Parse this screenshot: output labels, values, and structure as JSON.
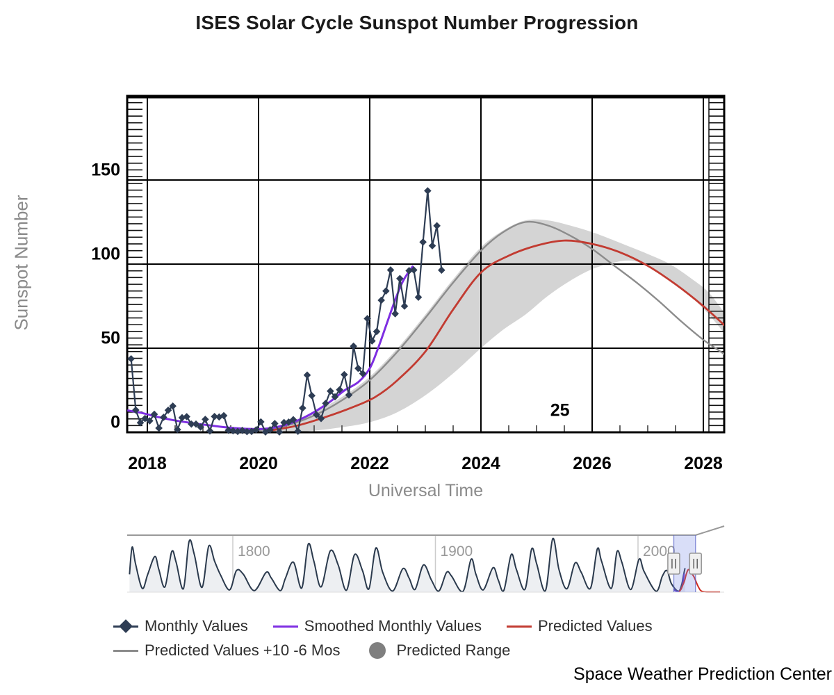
{
  "title": "ISES Solar Cycle Sunspot Number Progression",
  "footer": "Space Weather Prediction Center",
  "axes": {
    "x_title": "Universal Time",
    "y_title": "Sunspot Number",
    "x_ticks": [
      2018,
      2020,
      2022,
      2024,
      2026,
      2028
    ],
    "y_ticks": [
      0,
      50,
      100,
      150
    ]
  },
  "colors": {
    "monthly": "#2e3d54",
    "smoothed": "#7e2ee2",
    "predicted": "#c23b31",
    "predicted_shifted": "#8c8c8c",
    "predicted_range": "#d4d4d4",
    "grid": "#000000",
    "axis_title": "#8a8a8a",
    "tick_label": "#000000",
    "nav_line": "#2b3a4d",
    "nav_fill": "#edeff2",
    "nav_label": "#999999",
    "nav_grid": "#cccccc",
    "selection_fill": "rgba(120,135,230,0.28)",
    "selection_edge": "rgba(90,100,200,0.65)",
    "handle_fill": "#f0f0f0",
    "handle_stroke": "#999999"
  },
  "legend": {
    "rows": [
      {
        "items": [
          {
            "label": "Monthly Values",
            "marker": "diamond-line",
            "color": "#2e3d54"
          },
          {
            "label": "Smoothed Monthly Values",
            "marker": "line",
            "color": "#7e2ee2"
          },
          {
            "label": "Predicted Values",
            "marker": "line",
            "color": "#c23b31"
          }
        ]
      },
      {
        "items": [
          {
            "label": "Predicted Values +10 -6 Mos",
            "marker": "line",
            "color": "#8c8c8c"
          },
          {
            "label": "Predicted Range",
            "marker": "circle",
            "color": "#7f7f7f"
          }
        ]
      }
    ]
  },
  "chart_data": {
    "type": "line",
    "title": "ISES Solar Cycle Sunspot Number Progression",
    "xlabel": "Universal Time",
    "ylabel": "Sunspot Number",
    "xlim": [
      2017.64,
      2028.38
    ],
    "ylim": [
      0,
      200
    ],
    "x_ticks": [
      2018,
      2020,
      2022,
      2024,
      2026,
      2028
    ],
    "y_ticks": [
      0,
      50,
      100,
      150
    ],
    "annotation": {
      "text": "25",
      "x": 2025.42,
      "y": 13
    },
    "series": [
      {
        "name": "Monthly Values",
        "type": "line-diamond",
        "color": "#2e3d54",
        "points": [
          [
            2017.708,
            43.7
          ],
          [
            2017.792,
            13.2
          ],
          [
            2017.875,
            5.7
          ],
          [
            2017.958,
            8.2
          ],
          [
            2018.042,
            6.8
          ],
          [
            2018.125,
            10.7
          ],
          [
            2018.208,
            2.5
          ],
          [
            2018.292,
            8.9
          ],
          [
            2018.375,
            13.1
          ],
          [
            2018.458,
            15.6
          ],
          [
            2018.542,
            1.6
          ],
          [
            2018.625,
            8.7
          ],
          [
            2018.708,
            9.3
          ],
          [
            2018.792,
            4.9
          ],
          [
            2018.875,
            4.9
          ],
          [
            2018.958,
            3.1
          ],
          [
            2019.042,
            7.7
          ],
          [
            2019.125,
            0.8
          ],
          [
            2019.208,
            9.4
          ],
          [
            2019.292,
            9.1
          ],
          [
            2019.375,
            9.9
          ],
          [
            2019.458,
            1.2
          ],
          [
            2019.542,
            0.9
          ],
          [
            2019.625,
            0.5
          ],
          [
            2019.708,
            1.1
          ],
          [
            2019.792,
            0.4
          ],
          [
            2019.875,
            0.5
          ],
          [
            2019.958,
            1.5
          ],
          [
            2020.042,
            6.2
          ],
          [
            2020.125,
            0.2
          ],
          [
            2020.208,
            1.5
          ],
          [
            2020.292,
            5.2
          ],
          [
            2020.375,
            0.2
          ],
          [
            2020.458,
            5.8
          ],
          [
            2020.542,
            6.1
          ],
          [
            2020.625,
            7.5
          ],
          [
            2020.708,
            0.6
          ],
          [
            2020.792,
            14.4
          ],
          [
            2020.875,
            34.0
          ],
          [
            2020.958,
            21.8
          ],
          [
            2021.042,
            10.4
          ],
          [
            2021.125,
            8.2
          ],
          [
            2021.208,
            17.2
          ],
          [
            2021.292,
            24.5
          ],
          [
            2021.375,
            21.1
          ],
          [
            2021.458,
            25.3
          ],
          [
            2021.542,
            34.3
          ],
          [
            2021.625,
            22.2
          ],
          [
            2021.708,
            51.2
          ],
          [
            2021.792,
            38.0
          ],
          [
            2021.875,
            34.9
          ],
          [
            2021.958,
            67.6
          ],
          [
            2022.042,
            54.3
          ],
          [
            2022.125,
            59.9
          ],
          [
            2022.208,
            78.5
          ],
          [
            2022.292,
            84.0
          ],
          [
            2022.375,
            96.5
          ],
          [
            2022.458,
            70.5
          ],
          [
            2022.542,
            91.4
          ],
          [
            2022.625,
            75.0
          ],
          [
            2022.708,
            96.1
          ],
          [
            2022.792,
            96.5
          ],
          [
            2022.875,
            80.3
          ],
          [
            2022.958,
            113.1
          ],
          [
            2023.042,
            143.6
          ],
          [
            2023.125,
            110.9
          ],
          [
            2023.208,
            122.8
          ],
          [
            2023.292,
            96.4
          ]
        ]
      },
      {
        "name": "Smoothed Monthly Values",
        "type": "line",
        "color": "#7e2ee2",
        "points": [
          [
            2017.64,
            13
          ],
          [
            2017.9,
            11.5
          ],
          [
            2018.2,
            9
          ],
          [
            2018.5,
            7
          ],
          [
            2018.8,
            5.5
          ],
          [
            2019.1,
            4.2
          ],
          [
            2019.4,
            3
          ],
          [
            2019.7,
            2.2
          ],
          [
            2019.95,
            1.9
          ],
          [
            2020.2,
            2.4
          ],
          [
            2020.5,
            4.5
          ],
          [
            2020.8,
            8.5
          ],
          [
            2021.05,
            13
          ],
          [
            2021.3,
            18.5
          ],
          [
            2021.55,
            25
          ],
          [
            2021.8,
            30
          ],
          [
            2022.0,
            38
          ],
          [
            2022.15,
            50
          ],
          [
            2022.3,
            64
          ],
          [
            2022.45,
            78
          ],
          [
            2022.6,
            90
          ],
          [
            2022.78,
            99
          ]
        ]
      },
      {
        "name": "Predicted Values",
        "type": "line",
        "color": "#c23b31",
        "points": [
          [
            2020.2,
            1
          ],
          [
            2020.7,
            4
          ],
          [
            2021.2,
            9
          ],
          [
            2021.7,
            15
          ],
          [
            2022.1,
            21
          ],
          [
            2022.5,
            31
          ],
          [
            2023,
            48
          ],
          [
            2023.5,
            73
          ],
          [
            2024,
            95
          ],
          [
            2024.5,
            105
          ],
          [
            2025,
            111
          ],
          [
            2025.5,
            114
          ],
          [
            2026,
            112
          ],
          [
            2026.5,
            107
          ],
          [
            2027,
            99
          ],
          [
            2027.5,
            88
          ],
          [
            2028,
            75
          ],
          [
            2028.4,
            63
          ]
        ]
      },
      {
        "name": "Predicted Values +10 -6 Mos",
        "type": "line",
        "color": "#8c8c8c",
        "points": [
          [
            2019.9,
            1
          ],
          [
            2020.4,
            3
          ],
          [
            2021,
            10
          ],
          [
            2021.5,
            19
          ],
          [
            2022,
            31
          ],
          [
            2022.5,
            48
          ],
          [
            2023,
            68
          ],
          [
            2023.5,
            89
          ],
          [
            2024,
            108
          ],
          [
            2024.4,
            119
          ],
          [
            2024.8,
            125
          ],
          [
            2025.2,
            123
          ],
          [
            2025.6,
            117
          ],
          [
            2026,
            109
          ],
          [
            2026.4,
            99
          ],
          [
            2026.8,
            89
          ],
          [
            2027.2,
            78
          ],
          [
            2027.6,
            66
          ],
          [
            2028,
            55
          ],
          [
            2028.4,
            46
          ]
        ]
      },
      {
        "name": "Predicted Range",
        "type": "band",
        "color": "#d4d4d4",
        "points": [
          [
            2020.1,
            0,
            1
          ],
          [
            2020.5,
            0,
            5
          ],
          [
            2021,
            1,
            12
          ],
          [
            2021.5,
            3,
            21
          ],
          [
            2022,
            6,
            33
          ],
          [
            2022.5,
            12,
            50
          ],
          [
            2023,
            22,
            70
          ],
          [
            2023.5,
            35,
            91
          ],
          [
            2024,
            50,
            110
          ],
          [
            2024.4,
            61,
            120
          ],
          [
            2024.8,
            70,
            126
          ],
          [
            2025.2,
            81,
            126
          ],
          [
            2025.6,
            90,
            123
          ],
          [
            2026,
            97,
            119
          ],
          [
            2026.4,
            101,
            114
          ],
          [
            2026.7,
            102,
            110
          ],
          [
            2027,
            99,
            106
          ],
          [
            2027.4,
            91,
            100
          ],
          [
            2027.8,
            80,
            91
          ],
          [
            2028.1,
            70,
            83
          ],
          [
            2028.4,
            58,
            70
          ]
        ]
      }
    ],
    "navigator": {
      "x_ticks": [
        1800,
        1900,
        2000
      ],
      "xlim": [
        1748.3,
        2042.5
      ],
      "selection": [
        2017.64,
        2028.38
      ],
      "history": [
        [
          1749,
          95
        ],
        [
          1750.3,
          240
        ],
        [
          1752,
          150
        ],
        [
          1755.3,
          20
        ],
        [
          1758,
          95
        ],
        [
          1761.5,
          190
        ],
        [
          1763.5,
          120
        ],
        [
          1766.5,
          28
        ],
        [
          1769.8,
          215
        ],
        [
          1772,
          160
        ],
        [
          1775.6,
          18
        ],
        [
          1778.4,
          270
        ],
        [
          1781,
          200
        ],
        [
          1784.8,
          25
        ],
        [
          1788.1,
          245
        ],
        [
          1791,
          165
        ],
        [
          1794,
          90
        ],
        [
          1798.4,
          12
        ],
        [
          1801.8,
          115
        ],
        [
          1805.2,
          95
        ],
        [
          1810.6,
          8
        ],
        [
          1816.4,
          105
        ],
        [
          1819,
          75
        ],
        [
          1823.4,
          8
        ],
        [
          1826,
          75
        ],
        [
          1829.9,
          160
        ],
        [
          1834,
          22
        ],
        [
          1837.2,
          255
        ],
        [
          1840,
          165
        ],
        [
          1843.6,
          28
        ],
        [
          1848.1,
          220
        ],
        [
          1852,
          145
        ],
        [
          1856.1,
          10
        ],
        [
          1860.1,
          200
        ],
        [
          1864,
          115
        ],
        [
          1867.2,
          18
        ],
        [
          1870.6,
          235
        ],
        [
          1874,
          105
        ],
        [
          1878.9,
          6
        ],
        [
          1883.9,
          125
        ],
        [
          1887,
          75
        ],
        [
          1890,
          15
        ],
        [
          1894.1,
          145
        ],
        [
          1898,
          65
        ],
        [
          1901.7,
          6
        ],
        [
          1905.5,
          105
        ],
        [
          1908,
          85
        ],
        [
          1913.6,
          4
        ],
        [
          1917.6,
          175
        ],
        [
          1920,
          95
        ],
        [
          1923.6,
          12
        ],
        [
          1928.4,
          130
        ],
        [
          1931,
          65
        ],
        [
          1933.8,
          10
        ],
        [
          1937.4,
          200
        ],
        [
          1940,
          120
        ],
        [
          1944.2,
          15
        ],
        [
          1947.5,
          230
        ],
        [
          1950,
          150
        ],
        [
          1954.3,
          8
        ],
        [
          1957.9,
          285
        ],
        [
          1961,
          120
        ],
        [
          1964.9,
          18
        ],
        [
          1968.9,
          155
        ],
        [
          1972,
          105
        ],
        [
          1976.5,
          20
        ],
        [
          1979.9,
          230
        ],
        [
          1982,
          165
        ],
        [
          1986.8,
          20
        ],
        [
          1989.6,
          215
        ],
        [
          1992,
          160
        ],
        [
          1996.4,
          14
        ],
        [
          2000.5,
          175
        ],
        [
          2003,
          110
        ],
        [
          2008.9,
          5
        ],
        [
          2012,
          85
        ],
        [
          2014.3,
          115
        ],
        [
          2016.5,
          45
        ],
        [
          2019.9,
          5
        ],
        [
          2021.5,
          38
        ],
        [
          2022.5,
          92
        ],
        [
          2023.2,
          128
        ]
      ],
      "smoothed": [
        [
          2017.64,
          14
        ],
        [
          2018.6,
          7
        ],
        [
          2019.9,
          2
        ],
        [
          2021,
          13
        ],
        [
          2021.8,
          30
        ],
        [
          2022.3,
          60
        ],
        [
          2022.78,
          99
        ]
      ],
      "predicted": [
        [
          2020.3,
          2
        ],
        [
          2021.2,
          15
        ],
        [
          2022,
          35
        ],
        [
          2023,
          62
        ],
        [
          2023.8,
          95
        ],
        [
          2024.8,
          120
        ],
        [
          2025.8,
          110
        ],
        [
          2026.8,
          95
        ],
        [
          2027.8,
          78
        ],
        [
          2028.8,
          52
        ],
        [
          2029.8,
          28
        ],
        [
          2030.8,
          10
        ],
        [
          2032,
          3
        ],
        [
          2034,
          1
        ],
        [
          2040.5,
          1
        ]
      ]
    }
  }
}
